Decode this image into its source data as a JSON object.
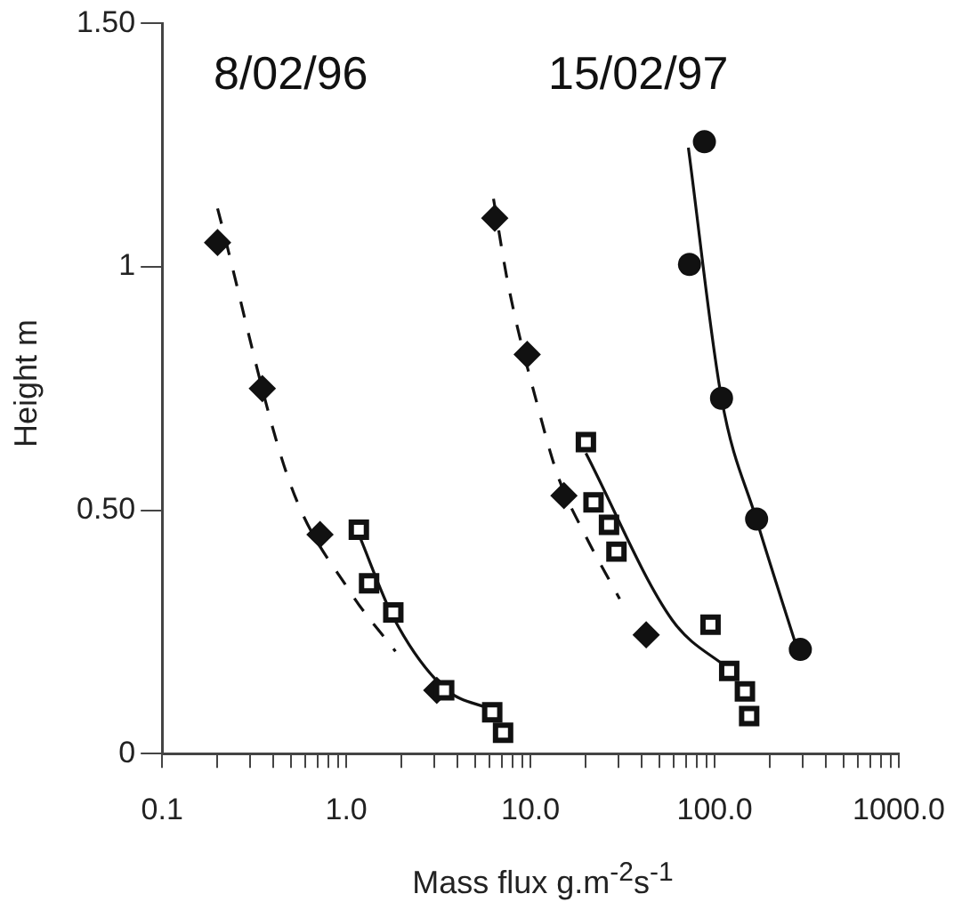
{
  "chart_data": {
    "type": "scatter",
    "xlabel": "Mass flux g.m$^{-2}$s$^{-1}$",
    "ylabel": "Height m",
    "log": "x",
    "grid": false,
    "legend": false,
    "xlim": [
      0.1,
      1000
    ],
    "xticks": [
      {
        "value": 0.1,
        "label": "0.1"
      },
      {
        "value": 0.2,
        "label": null
      },
      {
        "value": 0.3,
        "label": null
      },
      {
        "value": 0.4,
        "label": null
      },
      {
        "value": 0.5,
        "label": null
      },
      {
        "value": 0.6,
        "label": null
      },
      {
        "value": 0.7,
        "label": null
      },
      {
        "value": 0.8,
        "label": null
      },
      {
        "value": 0.9,
        "label": null
      },
      {
        "value": 1,
        "label": "1.0"
      },
      {
        "value": 2,
        "label": null
      },
      {
        "value": 3,
        "label": null
      },
      {
        "value": 4,
        "label": null
      },
      {
        "value": 5,
        "label": null
      },
      {
        "value": 6,
        "label": null
      },
      {
        "value": 7,
        "label": null
      },
      {
        "value": 8,
        "label": null
      },
      {
        "value": 9,
        "label": null
      },
      {
        "value": 10,
        "label": "10.0"
      },
      {
        "value": 20,
        "label": null
      },
      {
        "value": 30,
        "label": null
      },
      {
        "value": 40,
        "label": null
      },
      {
        "value": 50,
        "label": null
      },
      {
        "value": 60,
        "label": null
      },
      {
        "value": 70,
        "label": null
      },
      {
        "value": 80,
        "label": null
      },
      {
        "value": 90,
        "label": null
      },
      {
        "value": 100,
        "label": "100.0"
      },
      {
        "value": 200,
        "label": null
      },
      {
        "value": 300,
        "label": null
      },
      {
        "value": 400,
        "label": null
      },
      {
        "value": 500,
        "label": null
      },
      {
        "value": 600,
        "label": null
      },
      {
        "value": 700,
        "label": null
      },
      {
        "value": 800,
        "label": null
      },
      {
        "value": 900,
        "label": null
      },
      {
        "value": 1000,
        "label": "1000.0"
      }
    ],
    "ylim": [
      0,
      1.5
    ],
    "yticks": [
      0,
      {
        "value": 0.5,
        "label": "0.50"
      },
      1,
      {
        "value": 1.5,
        "label": "1.50"
      }
    ],
    "annotations": [
      "8/02/96",
      "15/02/97"
    ],
    "series": [
      {
        "color": "#111111",
        "marker": "diamond",
        "x": [
          0.2,
          0.35,
          0.72,
          3.1
        ],
        "values": [
          1.05,
          0.75,
          0.45,
          0.13
        ]
      },
      {
        "color": "#111111",
        "marker": "square",
        "x": [
          1.17,
          1.33,
          1.8,
          3.4,
          6.2,
          7.1
        ],
        "values": [
          0.46,
          0.35,
          0.29,
          0.13,
          0.085,
          0.043
        ]
      },
      {
        "color": "#111111",
        "marker": "diamond",
        "x": [
          6.4,
          9.6,
          15.2,
          42.5
        ],
        "values": [
          1.1,
          0.82,
          0.53,
          0.244
        ]
      },
      {
        "color": "#111111",
        "marker": "square",
        "x": [
          20,
          22,
          26.7,
          29.3,
          95,
          120,
          146,
          154
        ],
        "values": [
          0.64,
          0.516,
          0.47,
          0.415,
          0.265,
          0.17,
          0.128,
          0.077
        ]
      },
      {
        "color": "#111111",
        "marker": "circle",
        "x": [
          88,
          73,
          109,
          169,
          292
        ],
        "values": [
          1.257,
          1.005,
          0.73,
          0.482,
          0.214
        ]
      },
      {
        "type": "line",
        "color": "#111111",
        "marker": "none",
        "line_style": "dashed",
        "x": [
          0.2,
          0.49,
          1.06,
          1.85
        ],
        "values": [
          1.12,
          0.56,
          0.33,
          0.21
        ]
      },
      {
        "type": "line",
        "color": "#111111",
        "marker": "none",
        "line_style": "solid",
        "x": [
          1.17,
          1.8,
          3.4,
          6.2
        ],
        "values": [
          0.45,
          0.28,
          0.135,
          0.09
        ]
      },
      {
        "type": "line",
        "color": "#111111",
        "marker": "none",
        "line_style": "dashed",
        "x": [
          6.3,
          7.6,
          11.2,
          14.1,
          20,
          30.5
        ],
        "values": [
          1.14,
          0.96,
          0.7,
          0.57,
          0.446,
          0.318
        ]
      },
      {
        "type": "line",
        "color": "#111111",
        "marker": "none",
        "line_style": "solid",
        "x": [
          20,
          58.7,
          122
        ],
        "values": [
          0.617,
          0.275,
          0.171
        ]
      },
      {
        "type": "line",
        "color": "#111111",
        "marker": "none",
        "line_style": "solid",
        "x": [
          72,
          109,
          169,
          275
        ],
        "values": [
          1.245,
          0.73,
          0.48,
          0.226
        ]
      }
    ]
  }
}
